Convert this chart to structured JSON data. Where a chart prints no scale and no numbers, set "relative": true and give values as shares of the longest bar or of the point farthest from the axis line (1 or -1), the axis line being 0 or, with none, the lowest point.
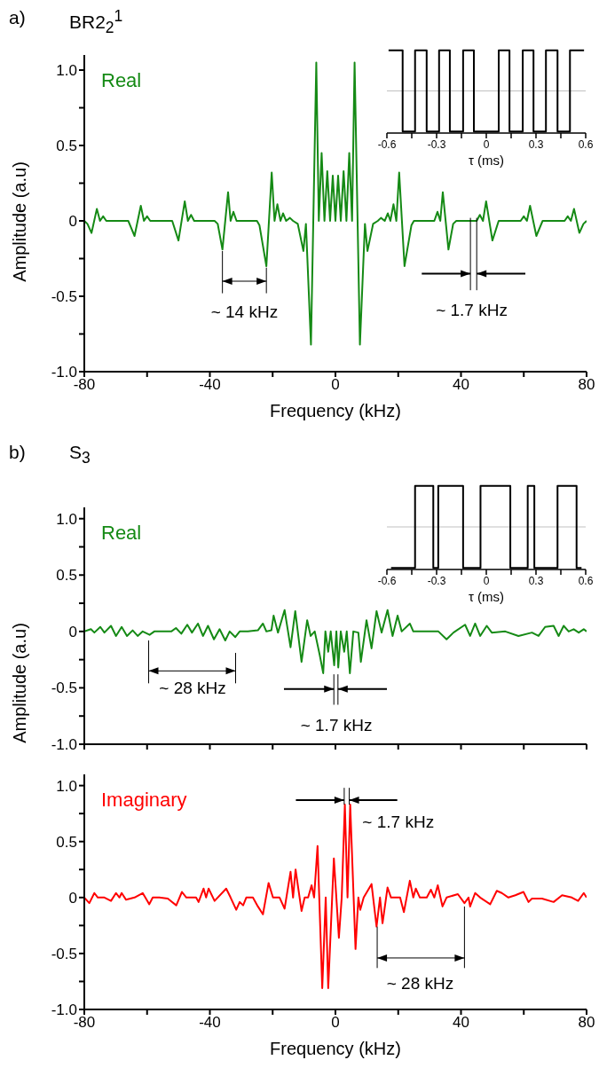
{
  "chart_data": [
    {
      "type": "line",
      "title": "a)",
      "subtitle": "BR2$_{2}$$^{1}$",
      "xlabel": "Frequency (kHz)",
      "ylabel": "Amplitude (a.u)",
      "xlim": [
        -80,
        80
      ],
      "ylim": [
        -1,
        1.1
      ],
      "xticks": [
        -80,
        {
          "value": -60,
          "label": null
        },
        -40,
        {
          "value": -20,
          "label": null
        },
        0,
        {
          "value": 20,
          "label": null
        },
        40,
        {
          "value": 60,
          "label": null
        },
        80
      ],
      "yticks": [
        {
          "value": -1,
          "label": "-1.0"
        },
        {
          "value": -0.75,
          "label": null
        },
        {
          "value": -0.5,
          "label": "-0.5"
        },
        {
          "value": -0.25,
          "label": null
        },
        {
          "value": 0,
          "label": "0"
        },
        {
          "value": 0.25,
          "label": null
        },
        {
          "value": 0.5,
          "label": "0.5"
        },
        {
          "value": 0.75,
          "label": null
        },
        {
          "value": 1,
          "label": "1.0"
        }
      ],
      "x": [
        -80,
        -79,
        -77.7,
        -76,
        -75,
        -74,
        -73,
        -66,
        -64,
        -62,
        -61,
        -60,
        -59,
        -52,
        -50,
        -48,
        -47,
        -46,
        -45,
        -38.5,
        -37.5,
        -36,
        -34.2,
        -33.4,
        -32.5,
        -31.5,
        -25,
        -24.2,
        -22,
        -20.3,
        -19.4,
        -18.5,
        -17.5,
        -16.7,
        -15.7,
        -14.5,
        -13.5,
        -12,
        -10.2,
        -9.4,
        -7.8,
        -6.1,
        -5.3,
        -4.4,
        -3.5,
        -2.6,
        -1.7,
        -0.85,
        0,
        0.85,
        1.7,
        2.6,
        3.5,
        4.4,
        5.3,
        6.1,
        7.8,
        9.4,
        10.2,
        12,
        13.5,
        14.5,
        15.7,
        16.7,
        17.5,
        18.5,
        19.4,
        20.3,
        22,
        24.2,
        25,
        31.5,
        32.5,
        33.4,
        34.2,
        36,
        37.5,
        38.5,
        45,
        46,
        47,
        48,
        50,
        52,
        59,
        60,
        61,
        62,
        64,
        66,
        73,
        74,
        75,
        76,
        77.7,
        79,
        80
      ],
      "series": [
        {
          "name": "Real",
          "color": "#158a15",
          "values": [
            0,
            -0.02,
            -0.08,
            0.08,
            0,
            0.03,
            0,
            0,
            -0.1,
            0.1,
            0,
            0.03,
            0,
            0,
            -0.13,
            0.13,
            0,
            0.04,
            0,
            0,
            -0.02,
            -0.19,
            0.19,
            0,
            0.06,
            0,
            0,
            -0.03,
            -0.3,
            0.32,
            0,
            0.11,
            0,
            0.05,
            0,
            0.02,
            0,
            -0.02,
            -0.2,
            -0.02,
            -0.82,
            1.05,
            0,
            0.45,
            0,
            0.33,
            0,
            0.3,
            0,
            0.3,
            0,
            0.33,
            0,
            0.45,
            0,
            1.05,
            -0.82,
            -0.02,
            -0.2,
            -0.02,
            0,
            0.02,
            0,
            0.05,
            0,
            0.11,
            0,
            0.32,
            -0.3,
            -0.03,
            0,
            0,
            0.06,
            0,
            0.19,
            -0.19,
            -0.02,
            0,
            0,
            0.04,
            0,
            0.13,
            -0.13,
            0,
            0,
            0.03,
            0,
            0.1,
            -0.1,
            0,
            0,
            0.03,
            0,
            0.08,
            -0.08,
            -0.02,
            0
          ]
        }
      ],
      "annotations": [
        {
          "text": "~ 14 kHz",
          "x": -36,
          "y": -0.19
        },
        {
          "text": "~ 1.7 kHz",
          "x": 45,
          "y": 0
        }
      ]
    },
    {
      "type": "line",
      "xlabel": "τ (ms)",
      "relative": true,
      "xlim": [
        -0.6,
        0.6
      ],
      "xticks": [
        -0.6,
        {
          "value": -0.45,
          "label": null
        },
        -0.3,
        {
          "value": -0.15,
          "label": null
        },
        0,
        {
          "value": 0.15,
          "label": null
        },
        0.3,
        {
          "value": 0.45,
          "label": null
        },
        0.6
      ],
      "ref_lines": [
        {
          "axis": "y",
          "value": 0,
          "color": "#c0c0c0"
        }
      ],
      "x": [
        -0.59,
        -0.505,
        -0.505,
        -0.43,
        -0.43,
        -0.36,
        -0.36,
        -0.285,
        -0.285,
        -0.22,
        -0.22,
        -0.14,
        -0.14,
        -0.075,
        -0.075,
        0.075,
        0.075,
        0.14,
        0.14,
        0.22,
        0.22,
        0.285,
        0.285,
        0.36,
        0.36,
        0.43,
        0.43,
        0.505,
        0.505,
        0.59
      ],
      "series": [
        {
          "color": "#000000",
          "values": [
            1,
            1,
            -1,
            -1,
            1,
            1,
            -1,
            -1,
            1,
            1,
            -1,
            -1,
            1,
            1,
            -1,
            -1,
            1,
            1,
            -1,
            -1,
            1,
            1,
            -1,
            -1,
            1,
            1,
            -1,
            -1,
            1,
            1
          ]
        }
      ]
    },
    {
      "type": "line",
      "title": "b)",
      "subtitle": "S$_{3}$",
      "ylabel": "Amplitude (a.u)",
      "tick_labels": "y",
      "xlim": [
        -80,
        80
      ],
      "ylim": [
        -1,
        1.1
      ],
      "xticks": [
        -80,
        {
          "value": -60,
          "label": null
        },
        -40,
        {
          "value": -20,
          "label": null
        },
        0,
        {
          "value": 20,
          "label": null
        },
        40,
        {
          "value": 60,
          "label": null
        },
        80
      ],
      "yticks": [
        {
          "value": -1,
          "label": "-1.0"
        },
        {
          "value": -0.75,
          "label": null
        },
        {
          "value": -0.5,
          "label": "-0.5"
        },
        {
          "value": -0.25,
          "label": null
        },
        {
          "value": 0,
          "label": "0"
        },
        {
          "value": 0.25,
          "label": null
        },
        {
          "value": 0.5,
          "label": "0.5"
        },
        {
          "value": 0.75,
          "label": null
        },
        {
          "value": 1,
          "label": "1.0"
        }
      ],
      "x": [
        -80,
        -77.9,
        -76.8,
        -74.9,
        -73.6,
        -71.5,
        -69.9,
        -68.1,
        -66.4,
        -64.6,
        -63,
        -61.4,
        -59.2,
        -57.7,
        -52.3,
        -50.8,
        -49.1,
        -47.2,
        -45.7,
        -43.8,
        -42.2,
        -40.6,
        -38.7,
        -36.9,
        -35.1,
        -33.7,
        -31.9,
        -30.5,
        -27.9,
        -24.7,
        -23.1,
        -22,
        -20.4,
        -19.7,
        -18.3,
        -16.2,
        -14.3,
        -12.8,
        -10.8,
        -9,
        -7.9,
        -6.6,
        -5,
        -3.9,
        -3.2,
        -2.3,
        -1.5,
        -0.4,
        0.3,
        0.9,
        1.7,
        2.8,
        3.6,
        4.6,
        5.7,
        7.3,
        8.1,
        9.9,
        11.5,
        13.1,
        14.7,
        16.6,
        18.2,
        19.8,
        21.1,
        23.7,
        24.8,
        32.8,
        35.4,
        37.6,
        41.3,
        42.9,
        44.5,
        46.1,
        48.2,
        49.8,
        54.1,
        58.3,
        62.6,
        64.7,
        66.8,
        69.5,
        71.1,
        72.7,
        74.3,
        75.9,
        77.5,
        79.1,
        80
      ],
      "series": [
        {
          "name": "Real",
          "color": "#158a15",
          "values": [
            0,
            0.02,
            -0.01,
            0.04,
            -0.01,
            0.05,
            -0.04,
            0.04,
            -0.04,
            0.01,
            -0.04,
            0,
            -0.03,
            0,
            0,
            0.03,
            -0.02,
            0.06,
            -0.01,
            0.07,
            -0.04,
            0.05,
            -0.07,
            0.02,
            -0.08,
            0,
            -0.05,
            0,
            0,
            0.01,
            0.07,
            0,
            0.01,
            0.14,
            -0.01,
            0.19,
            -0.14,
            0.18,
            -0.27,
            0.1,
            -0.04,
            0,
            -0.21,
            -0.37,
            0,
            -0.18,
            0,
            -0.3,
            0,
            -0.32,
            0,
            -0.18,
            0,
            -0.37,
            0,
            -0.01,
            -0.27,
            0.1,
            -0.15,
            0.18,
            -0.01,
            0.19,
            -0.04,
            0.14,
            0,
            0.07,
            0,
            0,
            -0.07,
            -0.01,
            0.06,
            -0.04,
            0.07,
            -0.04,
            0.05,
            -0.01,
            0,
            -0.04,
            -0.01,
            -0.04,
            0.04,
            0.05,
            -0.04,
            0.05,
            0,
            0.02,
            -0.01,
            0.02,
            0
          ]
        }
      ],
      "annotations": [
        "~ 28 kHz",
        "~ 1.7 kHz"
      ]
    },
    {
      "type": "line",
      "xlabel": "τ (ms)",
      "relative": true,
      "xlim": [
        -0.6,
        0.6
      ],
      "xticks": [
        -0.6,
        {
          "value": -0.45,
          "label": null
        },
        -0.3,
        {
          "value": -0.15,
          "label": null
        },
        0,
        {
          "value": 0.15,
          "label": null
        },
        0.3,
        {
          "value": 0.45,
          "label": null
        },
        0.6
      ],
      "ref_lines": [
        {
          "axis": "y",
          "value": 0,
          "color": "#c0c0c0"
        }
      ],
      "x": [
        -0.575,
        -0.43,
        -0.43,
        -0.32,
        -0.32,
        -0.29,
        -0.29,
        -0.14,
        -0.14,
        -0.035,
        -0.035,
        0.145,
        0.145,
        0.25,
        0.25,
        0.29,
        0.29,
        0.43,
        0.43,
        0.545,
        0.545,
        0.575
      ],
      "series": [
        {
          "color": "#000000",
          "values": [
            -1,
            -1,
            1,
            1,
            -1,
            -1,
            1,
            1,
            -1,
            -1,
            1,
            1,
            -1,
            -1,
            1,
            1,
            -1,
            -1,
            1,
            1,
            -1,
            -1
          ]
        }
      ]
    },
    {
      "type": "line",
      "xlabel": "Frequency (kHz)",
      "xlim": [
        -80,
        80
      ],
      "ylim": [
        -1,
        1.1
      ],
      "xticks": [
        -80,
        {
          "value": -60,
          "label": null
        },
        -40,
        {
          "value": -20,
          "label": null
        },
        0,
        {
          "value": 20,
          "label": null
        },
        40,
        {
          "value": 60,
          "label": null
        },
        80
      ],
      "yticks": [
        {
          "value": -1,
          "label": "-1.0"
        },
        {
          "value": -0.75,
          "label": null
        },
        {
          "value": -0.5,
          "label": "-0.5"
        },
        {
          "value": -0.25,
          "label": null
        },
        {
          "value": 0,
          "label": "0"
        },
        {
          "value": 0.25,
          "label": null
        },
        {
          "value": 0.5,
          "label": "0.5"
        },
        {
          "value": 0.75,
          "label": null
        },
        {
          "value": 1,
          "label": "1.0"
        }
      ],
      "x": [
        -80,
        -78.4,
        -76.8,
        -75.7,
        -73.6,
        -71.5,
        -69.9,
        -68.8,
        -68.1,
        -66.7,
        -64,
        -61.4,
        -59.3,
        -58.2,
        -56.1,
        -53.4,
        -50.7,
        -48.9,
        -47.5,
        -44.4,
        -43.6,
        -42,
        -41.2,
        -40.4,
        -38.5,
        -34.8,
        -33.4,
        -31.6,
        -30.5,
        -29.4,
        -28.4,
        -26.3,
        -24.7,
        -23.1,
        -21.3,
        -19.9,
        -17.8,
        -16.2,
        -14.3,
        -13.5,
        -12.7,
        -10.8,
        -9.8,
        -8.7,
        -7.6,
        -6.8,
        -5.7,
        -4.2,
        -3.1,
        -2.3,
        -0.5,
        1.1,
        2,
        3,
        3.85,
        4.7,
        6.4,
        7.3,
        7.9,
        9,
        11.5,
        13.1,
        14.2,
        15,
        16.6,
        17.7,
        20.6,
        21.8,
        23.7,
        24.8,
        25.6,
        26.9,
        29.1,
        30.4,
        31.5,
        32.6,
        34.1,
        35.4,
        39,
        41.1,
        42.4,
        42.9,
        44.5,
        46.1,
        49.3,
        51.4,
        53,
        55.1,
        57.3,
        59.9,
        61.5,
        62.6,
        65.8,
        69.5,
        72.2,
        75.3,
        77.3,
        79.1,
        80
      ],
      "series": [
        {
          "name": "Imaginary",
          "color": "#ff0000",
          "values": [
            0,
            -0.05,
            0.04,
            0,
            0,
            -0.03,
            0.04,
            0,
            0.04,
            -0.02,
            0,
            0.04,
            -0.06,
            0,
            0,
            -0.01,
            -0.07,
            0.05,
            0,
            0,
            -0.04,
            0.08,
            0,
            0.08,
            -0.03,
            0.08,
            0,
            -0.11,
            -0.04,
            -0.07,
            0,
            0,
            -0.08,
            -0.15,
            0.13,
            0,
            0,
            -0.1,
            0.23,
            0,
            0.25,
            -0.12,
            0,
            0,
            0.11,
            0,
            0.46,
            -0.81,
            0,
            -0.81,
            0.35,
            -0.36,
            0,
            0.83,
            0,
            0.83,
            -0.46,
            0,
            -0.11,
            0,
            0.12,
            -0.26,
            0,
            -0.23,
            0.09,
            0,
            0,
            -0.13,
            0.15,
            0,
            0.08,
            0,
            0,
            0.07,
            0,
            0.11,
            -0.08,
            0,
            0.03,
            -0.05,
            0,
            -0.08,
            0.04,
            0,
            -0.06,
            0.06,
            0.04,
            0,
            0.02,
            0.05,
            -0.04,
            -0.01,
            -0.01,
            -0.04,
            0.02,
            0,
            -0.03,
            0.04,
            0
          ]
        }
      ],
      "annotations": [
        "~ 1.7 kHz",
        {
          "text": "~ 28 kHz",
          "x": 13.1,
          "y": -0.26
        }
      ]
    }
  ]
}
